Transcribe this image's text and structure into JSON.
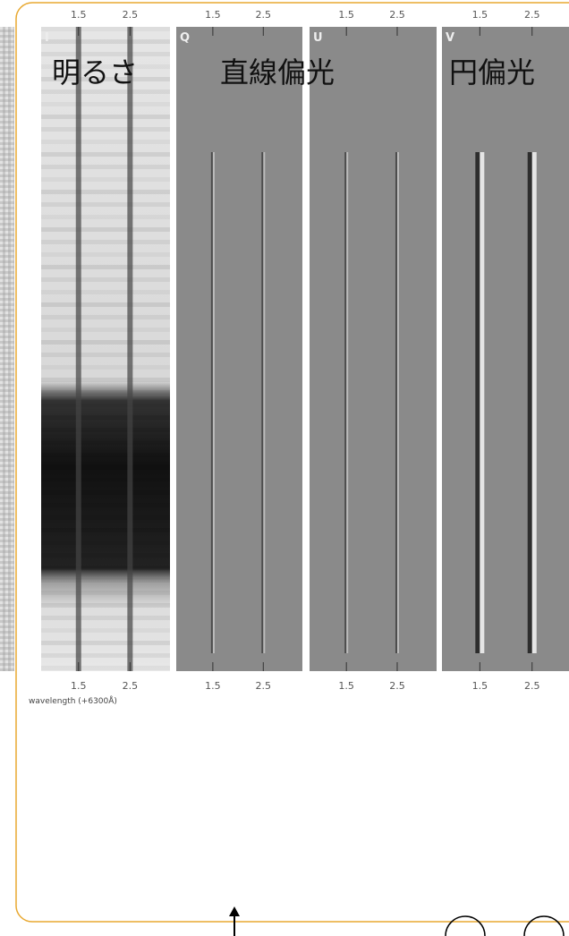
{
  "panels": [
    {
      "letter": "I",
      "ticks_top": [
        "1.5",
        "2.5"
      ],
      "ticks_bottom": [
        "1.5",
        "2.5"
      ]
    },
    {
      "letter": "Q",
      "ticks_top": [
        "1.5",
        "2.5"
      ],
      "ticks_bottom": [
        "1.5",
        "2.5"
      ]
    },
    {
      "letter": "U",
      "ticks_top": [
        "1.5",
        "2.5"
      ],
      "ticks_bottom": [
        "1.5",
        "2.5"
      ]
    },
    {
      "letter": "V",
      "ticks_top": [
        "1.5",
        "2.5"
      ],
      "ticks_bottom": [
        "1.5",
        "2.5"
      ]
    }
  ],
  "labels": [
    "明るさ",
    "直線偏光",
    "円偏光"
  ],
  "axis_label": "wavelength (+6300Å)"
}
